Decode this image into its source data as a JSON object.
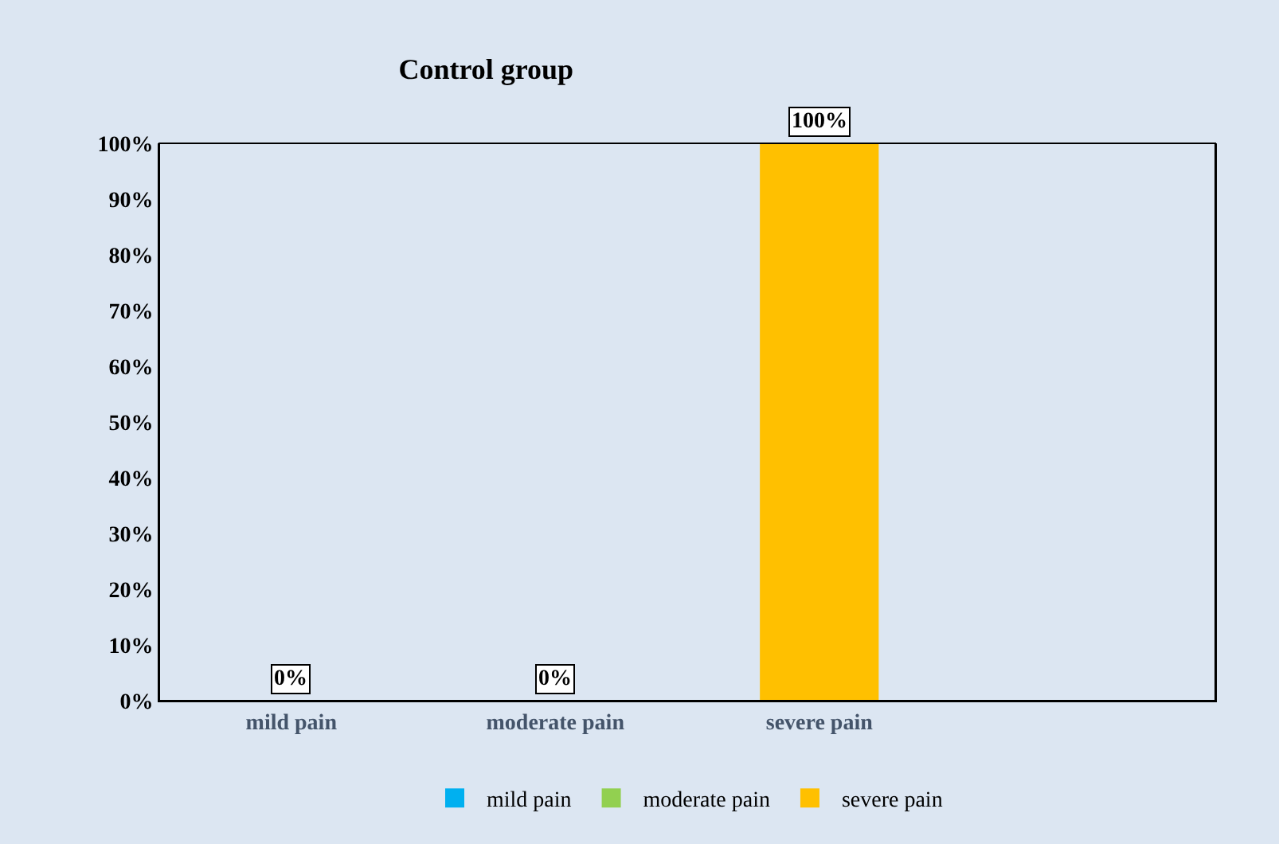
{
  "chart_data": {
    "type": "bar",
    "title": "Control group",
    "categories": [
      "mild pain",
      "moderate pain",
      "severe pain"
    ],
    "series": [
      {
        "name": "mild pain",
        "color": "#00b0f0",
        "values": [
          0,
          null,
          null
        ],
        "value_labels": [
          "0%",
          null,
          null
        ]
      },
      {
        "name": "moderate pain",
        "color": "#92d050",
        "values": [
          null,
          0,
          null
        ],
        "value_labels": [
          null,
          "0%",
          null
        ]
      },
      {
        "name": "severe pain",
        "color": "#ffc000",
        "values": [
          null,
          null,
          100
        ],
        "value_labels": [
          null,
          null,
          "100%"
        ]
      }
    ],
    "ylim": [
      0,
      100
    ],
    "yticks": [
      {
        "value": 0,
        "label": "0%"
      },
      {
        "value": 10,
        "label": "10%"
      },
      {
        "value": 20,
        "label": "20%"
      },
      {
        "value": 30,
        "label": "30%"
      },
      {
        "value": 40,
        "label": "40%"
      },
      {
        "value": 50,
        "label": "50%"
      },
      {
        "value": 60,
        "label": "60%"
      },
      {
        "value": 70,
        "label": "70%"
      },
      {
        "value": 80,
        "label": "80%"
      },
      {
        "value": 90,
        "label": "90%"
      },
      {
        "value": 100,
        "label": "100%"
      }
    ],
    "grid": false,
    "legend": "bottom"
  }
}
